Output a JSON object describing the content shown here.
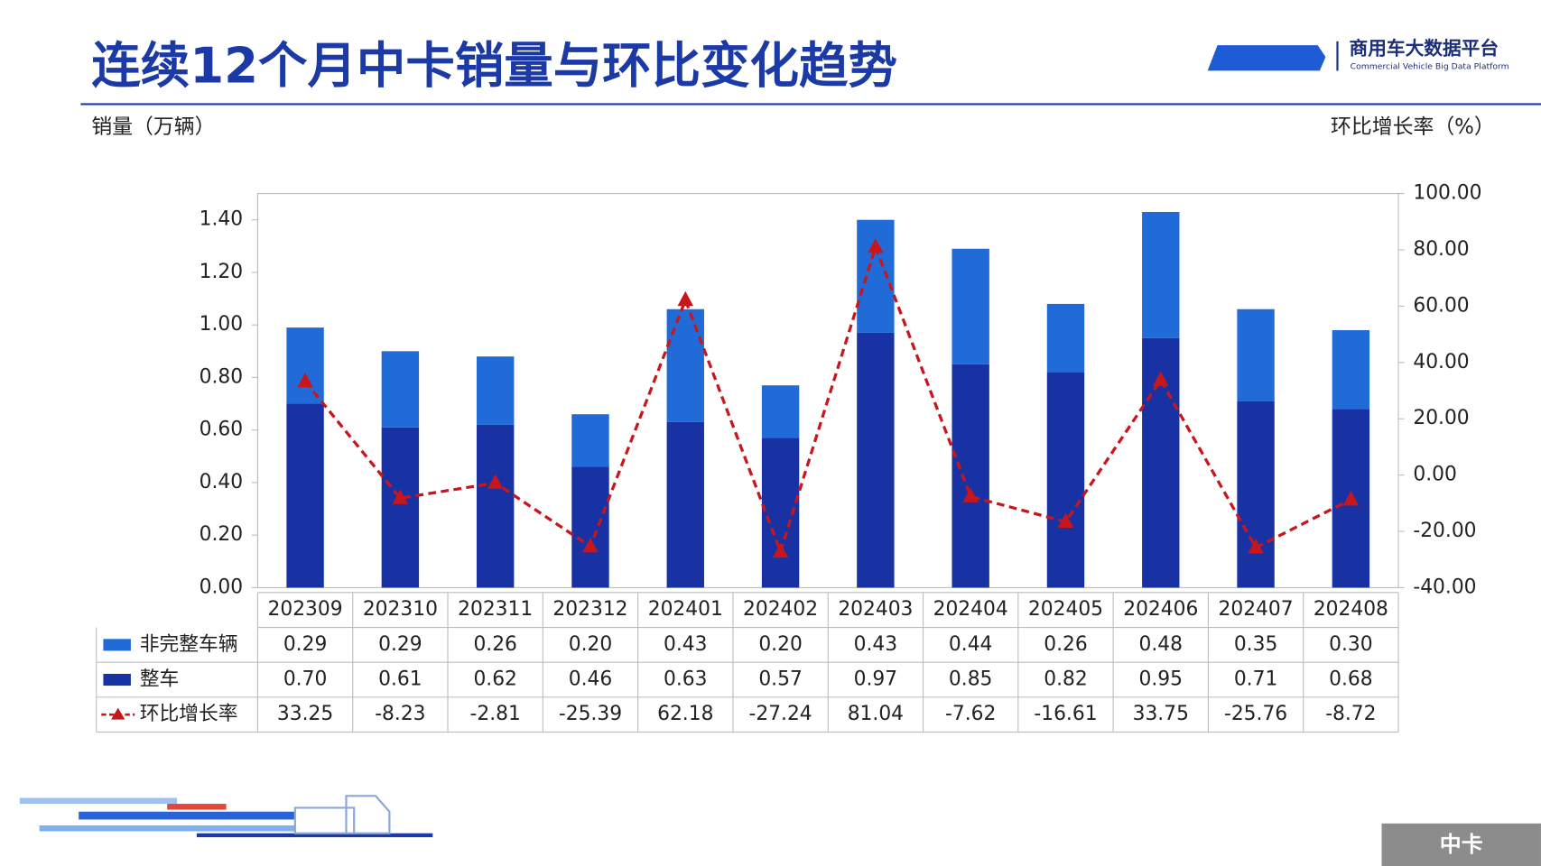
{
  "header": {
    "title": "连续12个月中卡销量与环比变化趋势",
    "logo_name": "商用车大数据平台",
    "logo_subtitle": "Commercial Vehicle Big Data Platform"
  },
  "chart_data": {
    "type": "bar-line",
    "y_label": "销量（万辆）",
    "y2_label": "环比增长率（%）",
    "categories": [
      "202309",
      "202310",
      "202311",
      "202312",
      "202401",
      "202402",
      "202403",
      "202404",
      "202405",
      "202406",
      "202407",
      "202408"
    ],
    "ylim": [
      0,
      1.5
    ],
    "yticks": [
      {
        "value": 0,
        "label": "0.00"
      },
      {
        "value": 0.2,
        "label": "0.20"
      },
      {
        "value": 0.4,
        "label": "0.40"
      },
      {
        "value": 0.6,
        "label": "0.60"
      },
      {
        "value": 0.8,
        "label": "0.80"
      },
      {
        "value": 1,
        "label": "1.00"
      },
      {
        "value": 1.2,
        "label": "1.20"
      },
      {
        "value": 1.4,
        "label": "1.40"
      }
    ],
    "y2lim": [
      -40,
      100
    ],
    "y2ticks": [
      {
        "value": -40,
        "label": "-40.00"
      },
      {
        "value": -20,
        "label": "-20.00"
      },
      {
        "value": 0,
        "label": "0.00"
      },
      {
        "value": 20,
        "label": "20.00"
      },
      {
        "value": 40,
        "label": "40.00"
      },
      {
        "value": 60,
        "label": "60.00"
      },
      {
        "value": 80,
        "label": "80.00"
      },
      {
        "value": 100,
        "label": "100.00"
      }
    ],
    "series": [
      {
        "name": "非完整车辆",
        "type": "bar",
        "stack": "top",
        "color": "#216bd9",
        "values": [
          0.29,
          0.29,
          0.26,
          0.2,
          0.43,
          0.2,
          0.43,
          0.44,
          0.26,
          0.48,
          0.35,
          0.3
        ],
        "value_labels": [
          "0.29",
          "0.29",
          "0.26",
          "0.20",
          "0.43",
          "0.20",
          "0.43",
          "0.44",
          "0.26",
          "0.48",
          "0.35",
          "0.30"
        ]
      },
      {
        "name": "整车",
        "type": "bar",
        "stack": "bottom",
        "color": "#1832a3",
        "values": [
          0.7,
          0.61,
          0.62,
          0.46,
          0.63,
          0.57,
          0.97,
          0.85,
          0.82,
          0.95,
          0.71,
          0.68
        ],
        "value_labels": [
          "0.70",
          "0.61",
          "0.62",
          "0.46",
          "0.63",
          "0.57",
          "0.97",
          "0.85",
          "0.82",
          "0.95",
          "0.71",
          "0.68"
        ]
      },
      {
        "name": "环比增长率",
        "type": "line",
        "axis": "y2",
        "color": "#c8161d",
        "values": [
          33.25,
          -8.23,
          -2.81,
          -25.39,
          62.18,
          -27.24,
          81.04,
          -7.62,
          -16.61,
          33.75,
          -25.76,
          -8.72
        ],
        "value_labels": [
          "33.25",
          "-8.23",
          "-2.81",
          "-25.39",
          "62.18",
          "-27.24",
          "81.04",
          "-7.62",
          "-16.61",
          "33.75",
          "-25.76",
          "-8.72"
        ]
      }
    ]
  },
  "badge": "中卡"
}
